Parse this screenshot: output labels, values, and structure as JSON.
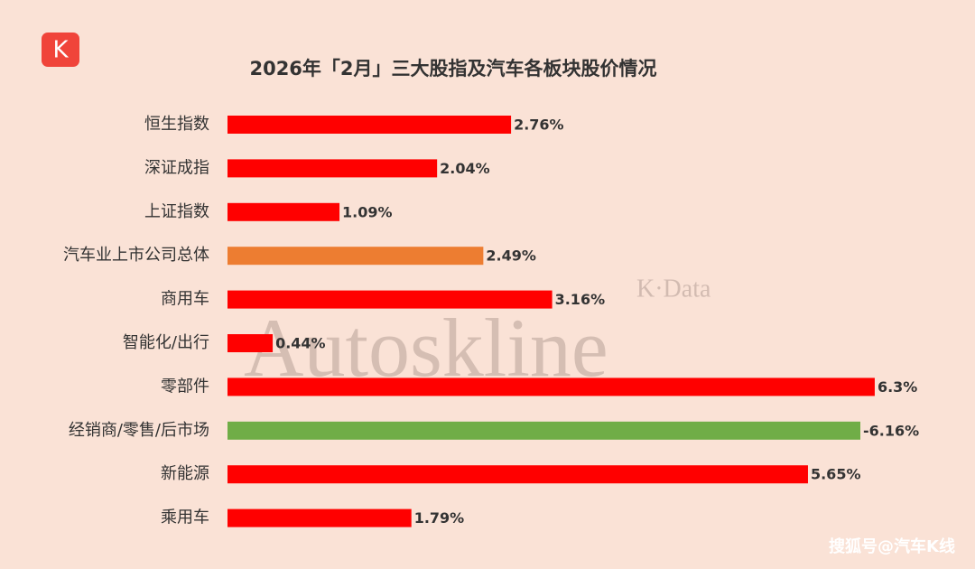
{
  "logo": "K",
  "watermark": "Autoskline",
  "watermark_sub": "K·Data",
  "footer": "搜狐号@汽车K线",
  "chart_data": {
    "type": "bar",
    "orientation": "horizontal",
    "title": "2026年「2月」三大股指及汽车各板块股价情况",
    "categories": [
      "恒生指数",
      "深证成指",
      "上证指数",
      "汽车业上市公司总体",
      "商用车",
      "智能化/出行",
      "零部件",
      "经销商/零售/后市场",
      "新能源",
      "乘用车"
    ],
    "values": [
      2.76,
      2.04,
      1.09,
      2.49,
      3.16,
      0.44,
      6.3,
      -6.16,
      5.65,
      1.79
    ],
    "value_labels": [
      "2.76%",
      "2.04%",
      "1.09%",
      "2.49%",
      "3.16%",
      "0.44%",
      "6.3%",
      "-6.16%",
      "5.65%",
      "1.79%"
    ],
    "colors": [
      "#ff0000",
      "#ff0000",
      "#ff0000",
      "#ed7d31",
      "#ff0000",
      "#ff0000",
      "#ff0000",
      "#70ad47",
      "#ff0000",
      "#ff0000"
    ]
  }
}
